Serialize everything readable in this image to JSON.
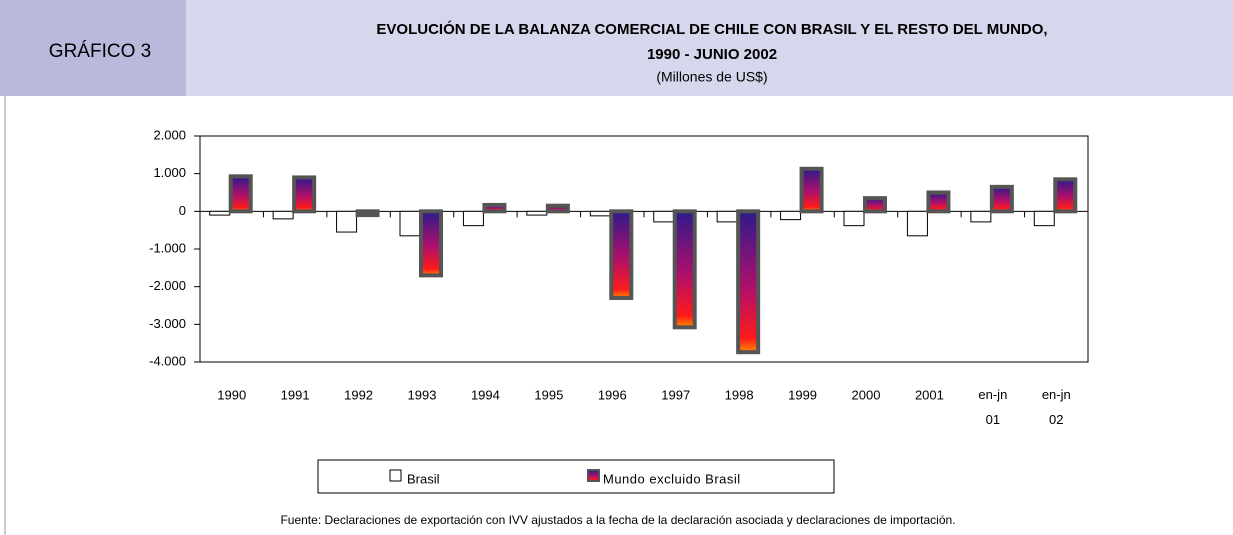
{
  "chart_data": {
    "type": "bar",
    "label": "GRÁFICO 3",
    "title": "EVOLUCIÓN DE LA BALANZA COMERCIAL DE CHILE CON BRASIL Y EL RESTO DEL MUNDO,",
    "title_line2": "1990 - JUNIO 2002",
    "subtitle": "(Millones de US$)",
    "categories": [
      "1990",
      "1991",
      "1992",
      "1993",
      "1994",
      "1995",
      "1996",
      "1997",
      "1998",
      "1999",
      "2000",
      "2001",
      "en-jn 01",
      "en-jn 02"
    ],
    "series": [
      {
        "name": "Brasil",
        "color": "#ffffff",
        "values": [
          -100,
          -200,
          -550,
          -650,
          -380,
          -100,
          -120,
          -280,
          -280,
          -220,
          -380,
          -650,
          -280,
          -380
        ]
      },
      {
        "name": "Mundo excluido Brasil",
        "color": "#2e1a8c",
        "values": [
          930,
          900,
          -100,
          -1700,
          170,
          150,
          -2300,
          -3080,
          -3740,
          1130,
          350,
          500,
          650,
          850
        ]
      }
    ],
    "ylim": [
      -4000,
      2000
    ],
    "yticks": [
      {
        "value": 2000,
        "label": "2.000"
      },
      {
        "value": 1000,
        "label": "1.000"
      },
      0,
      {
        "value": -1000,
        "label": "-1.000"
      },
      {
        "value": -2000,
        "label": "-2.000"
      },
      {
        "value": -3000,
        "label": "-3.000"
      },
      {
        "value": -4000,
        "label": "-4.000"
      }
    ],
    "source": "Fuente: Declaraciones de exportación con IVV ajustados a la fecha de la declaración asociada y declaraciones de importación."
  }
}
